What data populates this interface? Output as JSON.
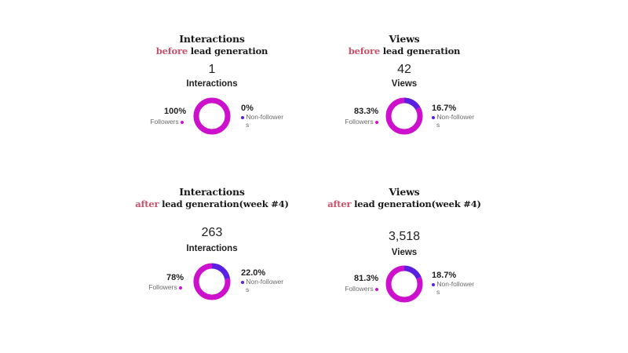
{
  "colors": {
    "followers": "#cc10cc",
    "non_followers": "#5a1fe0",
    "accent": "#c8506a"
  },
  "panels": [
    {
      "title": "Interactions",
      "subtitle_accent": "before",
      "subtitle_rest": " lead generation",
      "total": "1",
      "metric_label": "Interactions",
      "followers_pct": "100%",
      "followers_label": "Followers",
      "nonfollowers_pct": "0%",
      "nonfollowers_label_a": "Non-follower",
      "nonfollowers_label_b": "s"
    },
    {
      "title": "Views",
      "subtitle_accent": "before",
      "subtitle_rest": " lead generation",
      "total": "42",
      "metric_label": "Views",
      "followers_pct": "83.3%",
      "followers_label": "Followers",
      "nonfollowers_pct": "16.7%",
      "nonfollowers_label_a": "Non-follower",
      "nonfollowers_label_b": "s"
    },
    {
      "title": "Interactions",
      "subtitle_accent": "after",
      "subtitle_rest": " lead generation(week #4)",
      "total": "263",
      "metric_label": "Interactions",
      "followers_pct": "78%",
      "followers_label": "Followers",
      "nonfollowers_pct": "22.0%",
      "nonfollowers_label_a": "Non-follower",
      "nonfollowers_label_b": "s"
    },
    {
      "title": "Views",
      "subtitle_accent": "after",
      "subtitle_rest": " lead generation(week #4)",
      "total": "3,518",
      "metric_label": "Views",
      "followers_pct": "81.3%",
      "followers_label": "Followers",
      "nonfollowers_pct": "18.7%",
      "nonfollowers_label_a": "Non-follower",
      "nonfollowers_label_b": "s"
    }
  ],
  "chart_data": [
    {
      "type": "pie",
      "title": "Interactions",
      "categories": [
        "Followers",
        "Non-followers"
      ],
      "values": [
        100,
        0
      ],
      "total": 1
    },
    {
      "type": "pie",
      "title": "Views",
      "categories": [
        "Followers",
        "Non-followers"
      ],
      "values": [
        83.3,
        16.7
      ],
      "total": 42
    },
    {
      "type": "pie",
      "title": "Interactions",
      "categories": [
        "Followers",
        "Non-followers"
      ],
      "values": [
        78,
        22.0
      ],
      "total": 263
    },
    {
      "type": "pie",
      "title": "Views",
      "categories": [
        "Followers",
        "Non-followers"
      ],
      "values": [
        81.3,
        18.7
      ],
      "total": 3518
    }
  ]
}
